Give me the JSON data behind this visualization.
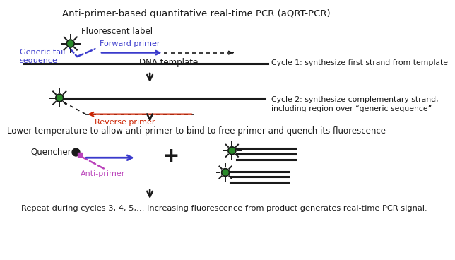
{
  "title": "Anti-primer-based quantitative real-time PCR (aQRT-PCR)",
  "bottom_text": "Repeat during cycles 3, 4, 5,… Increasing fluorescence from product generates real-time PCR signal.",
  "middle_text": "Lower temperature to allow anti-primer to bind to free primer and quench its fluorescence",
  "cycle1_text": "Cycle 1: synthesize first strand from template",
  "cycle2_text": "Cycle 2: synthesize complementary strand,\nincluding region over “generic sequence”",
  "fluor_label": "Fluorescent label",
  "generic_tail": "Generic tail\nsequence",
  "forward_primer": "Forward primer",
  "dna_template": "DNA template",
  "reverse_primer": "Reverse primer",
  "quencher": "Quencher",
  "anti_primer": "Anti-primer",
  "colors": {
    "green": "#2a8a2a",
    "black": "#1a1a1a",
    "blue": "#3a3acc",
    "red": "#cc2200",
    "purple": "#bb44bb",
    "white": "#ffffff"
  }
}
